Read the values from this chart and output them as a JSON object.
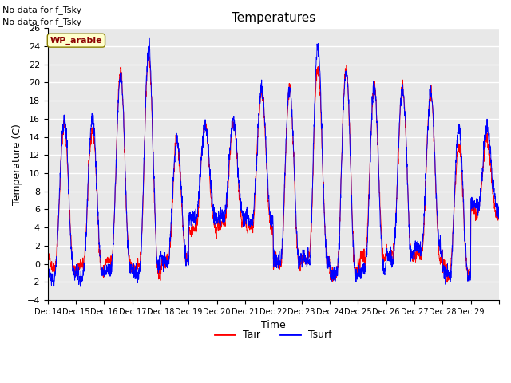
{
  "title": "Temperatures",
  "xlabel": "Time",
  "ylabel": "Temperature (C)",
  "ylim": [
    -4,
    26
  ],
  "yticks": [
    -4,
    -2,
    0,
    2,
    4,
    6,
    8,
    10,
    12,
    14,
    16,
    18,
    20,
    22,
    24,
    26
  ],
  "legend_labels": [
    "Tair",
    "Tsurf"
  ],
  "legend_colors": [
    "red",
    "blue"
  ],
  "note_lines": [
    "No data for f_Tsky",
    "No data for f_Tsky"
  ],
  "wp_label": "WP_arable",
  "bg_color": "#e8e8e8",
  "xtick_labels": [
    "Dec 14",
    "Dec 15",
    "Dec 16",
    "Dec 17",
    "Dec 18",
    "Dec 19",
    "Dec 20",
    "Dec 21",
    "Dec 22",
    "Dec 23",
    "Dec 24",
    "Dec 25",
    "Dec 26",
    "Dec 27",
    "Dec 28",
    "Dec 29"
  ],
  "n_days": 16,
  "seed": 42,
  "day_peaks_tair": [
    15.2,
    15.0,
    21.0,
    23.0,
    13.5,
    15.5,
    15.5,
    19.0,
    19.0,
    21.5,
    21.5,
    19.0,
    19.5,
    18.5,
    13.0,
    13.5
  ],
  "day_mins_tair": [
    -0.5,
    -0.5,
    0.0,
    -0.5,
    0.0,
    4.0,
    4.5,
    4.0,
    0.0,
    0.5,
    -1.0,
    0.5,
    1.0,
    1.0,
    -1.0,
    5.5
  ],
  "day_peaks_tsurf": [
    16.2,
    16.5,
    20.5,
    23.5,
    14.0,
    15.5,
    16.0,
    19.5,
    19.5,
    24.0,
    21.5,
    19.5,
    19.8,
    19.0,
    15.0,
    14.5
  ],
  "day_mins_tsurf": [
    -1.5,
    -1.0,
    -0.5,
    -1.0,
    0.5,
    5.0,
    5.0,
    5.0,
    0.5,
    0.0,
    -1.0,
    -0.5,
    1.0,
    1.5,
    -1.5,
    6.5
  ]
}
